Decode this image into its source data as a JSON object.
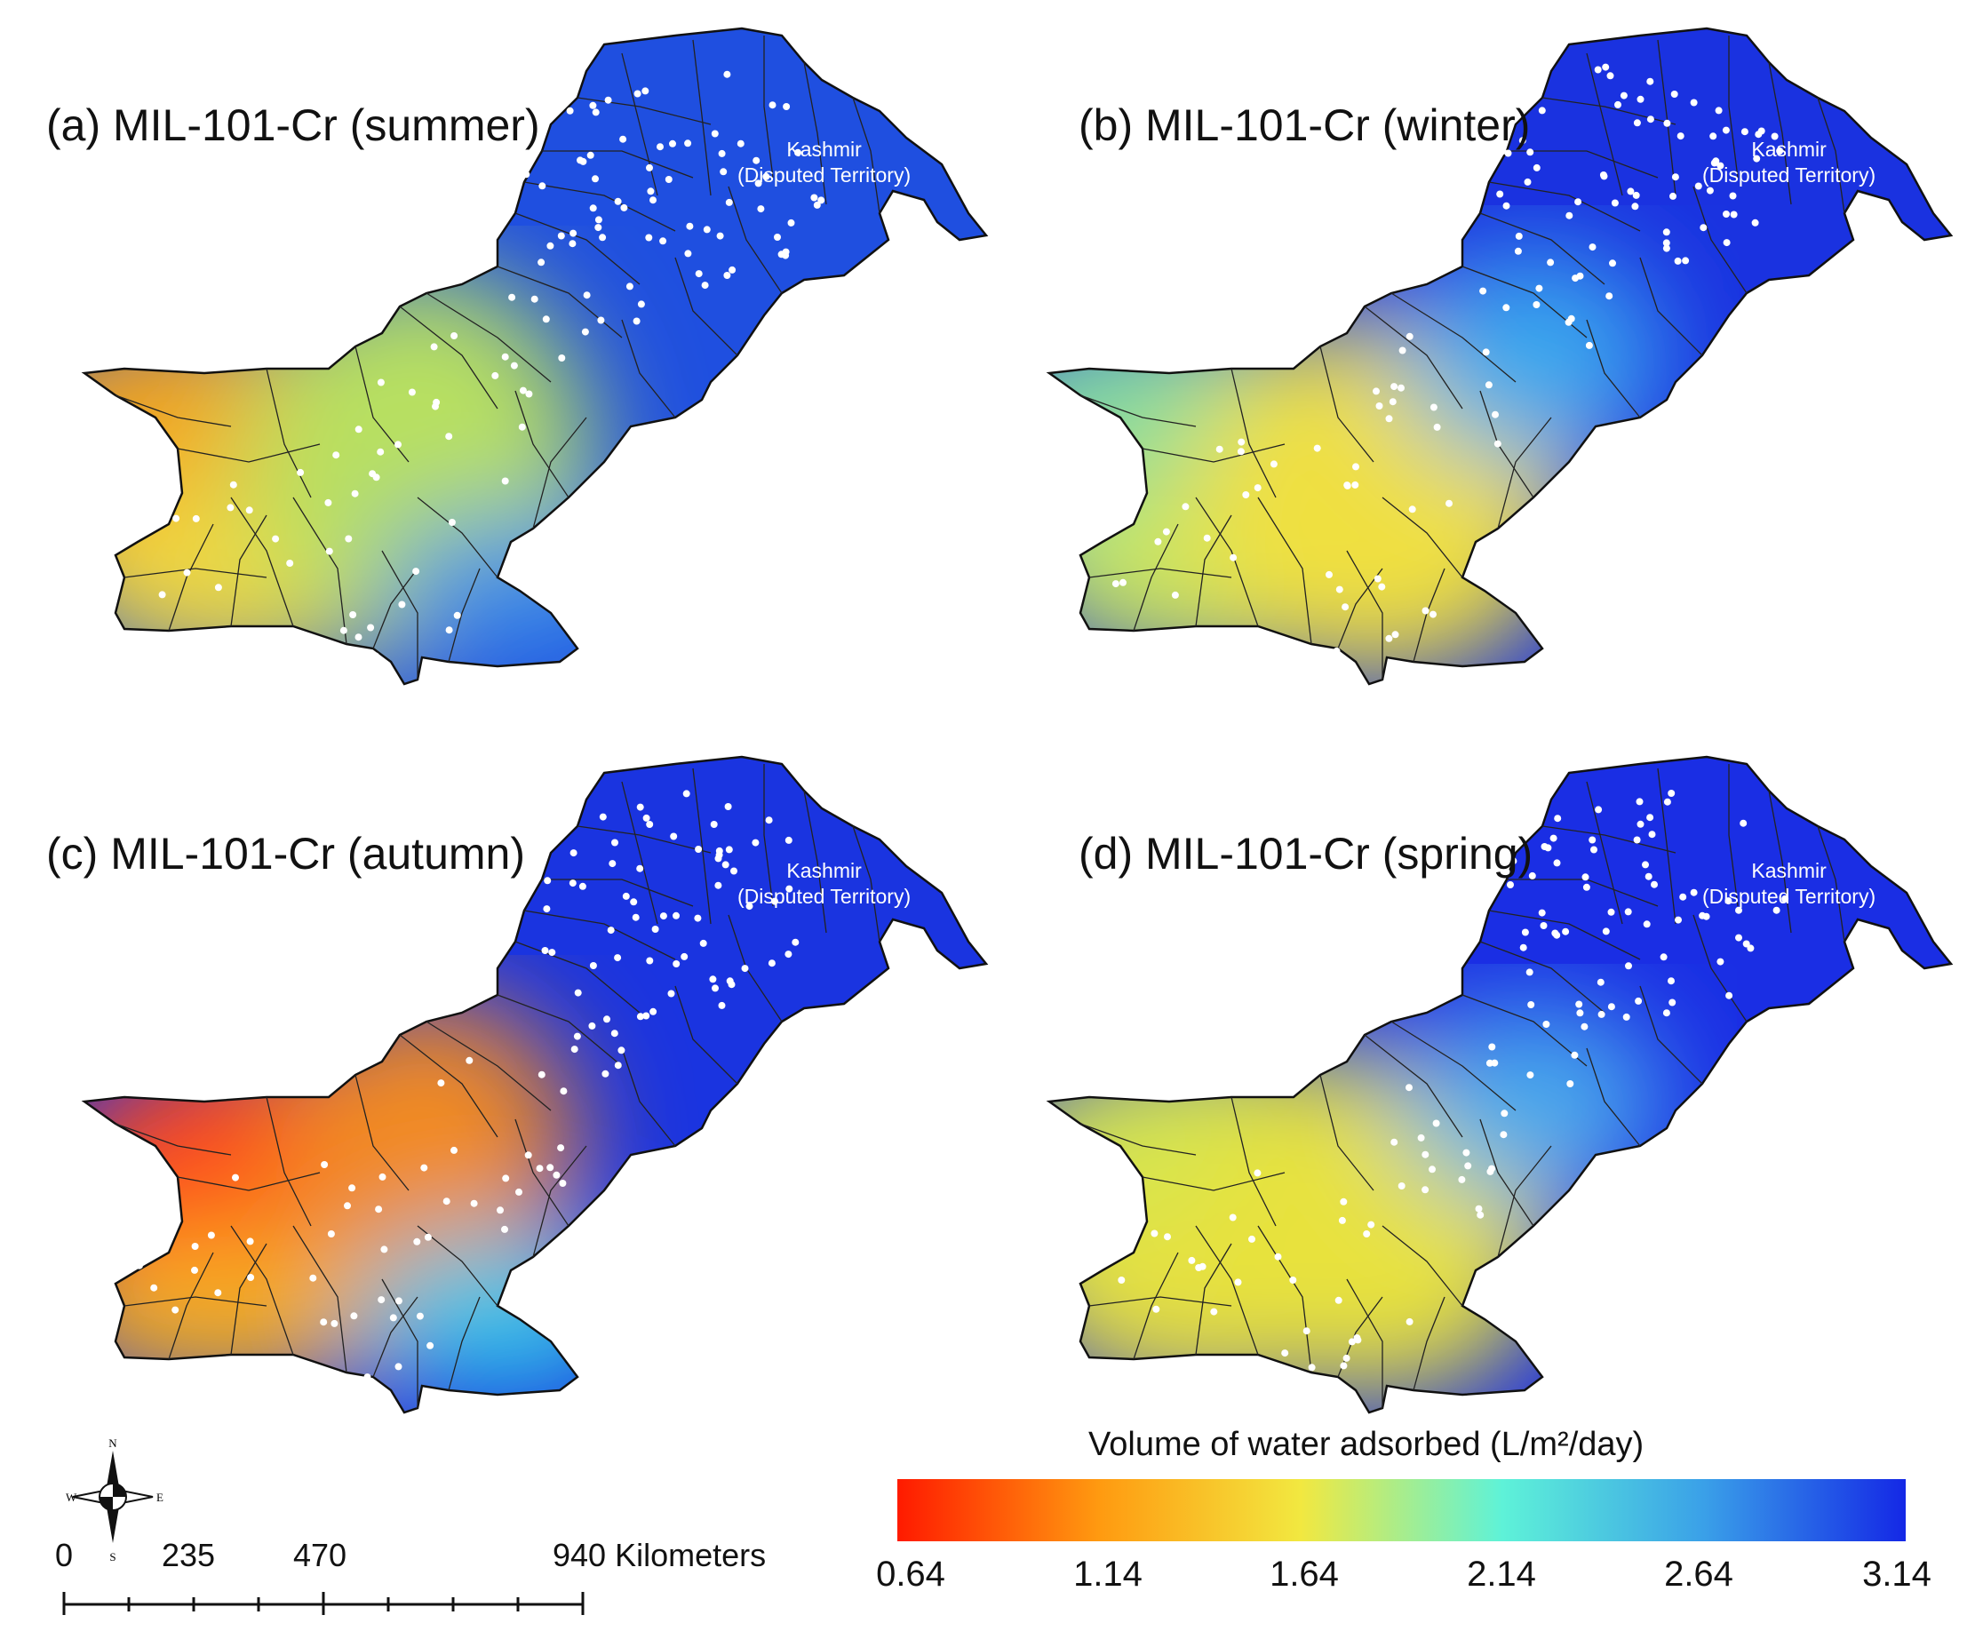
{
  "panels": [
    {
      "id": "a",
      "title": "(a) MIL-101-Cr (summer)",
      "region_label_line1": "Kashmir",
      "region_label_line2": "(Disputed Territory)",
      "color_stops": {
        "west": "#f4a41a",
        "southwest": "#f2d840",
        "center": "#b8e060",
        "east": "#3a8ee8",
        "north": "#1f4fe0"
      }
    },
    {
      "id": "b",
      "title": "(b) MIL-101-Cr (winter)",
      "region_label_line1": "Kashmir",
      "region_label_line2": "(Disputed Territory)",
      "color_stops": {
        "west": "#86dca0",
        "southwest": "#c8e660",
        "center": "#f0e040",
        "east": "#3aa8ee",
        "north": "#1a32e0"
      }
    },
    {
      "id": "c",
      "title": "(c) MIL-101-Cr (autumn)",
      "region_label_line1": "Kashmir",
      "region_label_line2": "(Disputed Territory)",
      "color_stops": {
        "west": "#ff4a1a",
        "southwest": "#f6b020",
        "center": "#f28a20",
        "east": "#36c8e8",
        "north": "#1a34e0"
      }
    },
    {
      "id": "d",
      "title": "(d) MIL-101-Cr (spring)",
      "region_label_line1": "Kashmir",
      "region_label_line2": "(Disputed Territory)",
      "color_stops": {
        "west": "#d6e650",
        "southwest": "#e6e040",
        "center": "#e8e23c",
        "east": "#48aaec",
        "north": "#1a2ee4"
      }
    }
  ],
  "legend": {
    "title": "Volume of water adsorbed (L/m²/day)",
    "ticks": [
      "0.64",
      "1.14",
      "1.64",
      "2.14",
      "2.64",
      "3.14"
    ],
    "gradient": [
      "#ff1a00",
      "#ff9a10",
      "#f2e840",
      "#5ef2d8",
      "#3aa0e8",
      "#1428e6"
    ]
  },
  "scale_bar": {
    "labels": [
      "0",
      "235",
      "470",
      "940 Kilometers"
    ]
  },
  "compass": {
    "n": "N",
    "s": "S",
    "e": "E",
    "w": "W"
  }
}
